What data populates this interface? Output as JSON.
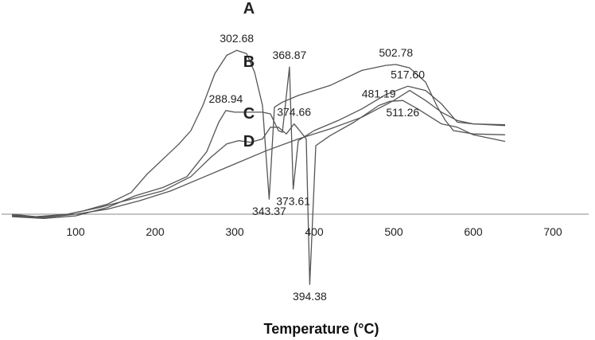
{
  "chart_data": {
    "type": "line",
    "title": "",
    "xlabel": "Temperature (°C)",
    "ylabel": "",
    "xlim": [
      20,
      700
    ],
    "ylim": [
      -100,
      230
    ],
    "x_ticks": [
      100,
      200,
      300,
      400,
      500,
      600,
      700
    ],
    "grid": false,
    "legend": "none",
    "colors": {
      "line": "#555555",
      "axis": "#888888",
      "text": "#222222"
    },
    "curve_labels": [
      "A",
      "B",
      "C",
      "D"
    ],
    "series": [
      {
        "name": "A",
        "points": [
          [
            20,
            0
          ],
          [
            50,
            -3
          ],
          [
            80,
            -2
          ],
          [
            110,
            4
          ],
          [
            140,
            12
          ],
          [
            170,
            26
          ],
          [
            190,
            48
          ],
          [
            210,
            66
          ],
          [
            230,
            84
          ],
          [
            245,
            100
          ],
          [
            260,
            130
          ],
          [
            275,
            168
          ],
          [
            290,
            190
          ],
          [
            302.68,
            196
          ],
          [
            315,
            192
          ],
          [
            325,
            170
          ],
          [
            335,
            130
          ],
          [
            343.37,
            18
          ],
          [
            350,
            128
          ],
          [
            360,
            134
          ],
          [
            380,
            142
          ],
          [
            420,
            154
          ],
          [
            460,
            172
          ],
          [
            490,
            178
          ],
          [
            502.78,
            179
          ],
          [
            520,
            175
          ],
          [
            540,
            158
          ],
          [
            555,
            128
          ],
          [
            565,
            112
          ],
          [
            575,
            100
          ],
          [
            600,
            96
          ],
          [
            640,
            95
          ]
        ]
      },
      {
        "name": "B",
        "points": [
          [
            20,
            -3
          ],
          [
            60,
            -5
          ],
          [
            100,
            -2
          ],
          [
            140,
            8
          ],
          [
            175,
            22
          ],
          [
            210,
            32
          ],
          [
            240,
            45
          ],
          [
            265,
            75
          ],
          [
            280,
            110
          ],
          [
            288.94,
            124
          ],
          [
            300,
            122
          ],
          [
            320,
            122
          ],
          [
            335,
            122
          ],
          [
            345,
            120
          ],
          [
            355,
            100
          ],
          [
            360,
            98
          ],
          [
            368.87,
            176
          ],
          [
            373.61,
            30
          ],
          [
            380,
            88
          ],
          [
            400,
            100
          ],
          [
            430,
            112
          ],
          [
            460,
            126
          ],
          [
            490,
            143
          ],
          [
            517.6,
            153
          ],
          [
            540,
            148
          ],
          [
            560,
            132
          ],
          [
            580,
            110
          ],
          [
            600,
            108
          ],
          [
            640,
            107
          ]
        ]
      },
      {
        "name": "C",
        "points": [
          [
            20,
            -1
          ],
          [
            50,
            -3
          ],
          [
            90,
            0
          ],
          [
            130,
            8
          ],
          [
            170,
            18
          ],
          [
            210,
            28
          ],
          [
            245,
            45
          ],
          [
            270,
            68
          ],
          [
            290,
            84
          ],
          [
            305,
            88
          ],
          [
            320,
            86
          ],
          [
            335,
            90
          ],
          [
            345,
            104
          ],
          [
            355,
            104
          ],
          [
            365,
            96
          ],
          [
            374.66,
            108
          ],
          [
            380,
            102
          ],
          [
            390,
            90
          ],
          [
            394.38,
            -84
          ],
          [
            402,
            82
          ],
          [
            420,
            94
          ],
          [
            450,
            110
          ],
          [
            481.19,
            130
          ],
          [
            495,
            135
          ],
          [
            511.26,
            136
          ],
          [
            530,
            126
          ],
          [
            560,
            108
          ],
          [
            580,
            104
          ],
          [
            600,
            95
          ],
          [
            640,
            87
          ]
        ]
      },
      {
        "name": "D",
        "points": [
          [
            20,
            -2
          ],
          [
            60,
            -4
          ],
          [
            100,
            0
          ],
          [
            140,
            6
          ],
          [
            180,
            16
          ],
          [
            220,
            28
          ],
          [
            260,
            44
          ],
          [
            300,
            60
          ],
          [
            340,
            76
          ],
          [
            380,
            90
          ],
          [
            420,
            102
          ],
          [
            460,
            116
          ],
          [
            500,
            136
          ],
          [
            520,
            148
          ],
          [
            540,
            136
          ],
          [
            560,
            122
          ],
          [
            580,
            112
          ],
          [
            600,
            108
          ],
          [
            640,
            106
          ]
        ]
      }
    ],
    "peak_annotations": [
      {
        "label": "302.68",
        "x": 302.68,
        "series": "A",
        "side": "above"
      },
      {
        "label": "502.78",
        "x": 502.78,
        "series": "A",
        "side": "above"
      },
      {
        "label": "343.37",
        "x": 343.37,
        "series": "A",
        "side": "below"
      },
      {
        "label": "288.94",
        "x": 288.94,
        "series": "B",
        "side": "above"
      },
      {
        "label": "368.87",
        "x": 368.87,
        "series": "B",
        "side": "above"
      },
      {
        "label": "373.61",
        "x": 373.61,
        "series": "B",
        "side": "below"
      },
      {
        "label": "517.60",
        "x": 517.6,
        "series": "B",
        "side": "above"
      },
      {
        "label": "374.66",
        "x": 374.66,
        "series": "C",
        "side": "above"
      },
      {
        "label": "394.38",
        "x": 394.38,
        "series": "C",
        "side": "below"
      },
      {
        "label": "481.19",
        "x": 481.19,
        "series": "C",
        "side": "above"
      },
      {
        "label": "511.26",
        "x": 511.26,
        "series": "C",
        "side": "below"
      }
    ]
  }
}
